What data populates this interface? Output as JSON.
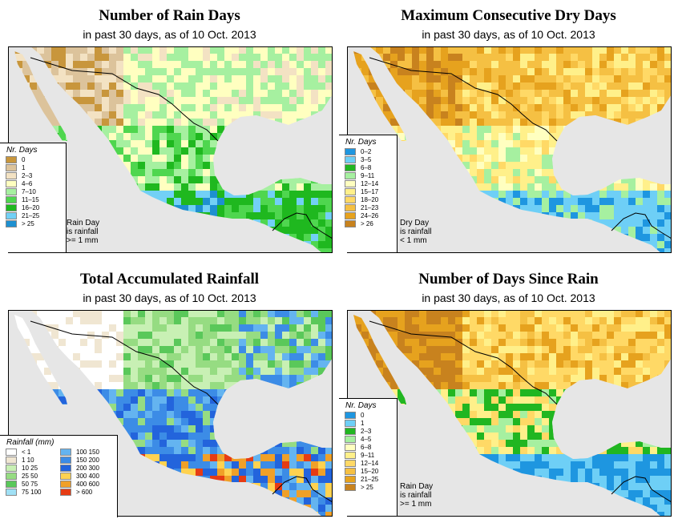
{
  "chart_data": [
    {
      "type": "heatmap",
      "title": "Number of Rain Days",
      "subtitle": "in past 30 days, as of  10 Oct. 2013",
      "legend_title": "Nr. Days",
      "legend": [
        {
          "label": "0",
          "color": "#c8963c"
        },
        {
          "label": "1",
          "color": "#dcc39b"
        },
        {
          "label": "2–3",
          "color": "#f3e2c3"
        },
        {
          "label": "4–6",
          "color": "#ffffc0"
        },
        {
          "label": "7–10",
          "color": "#a6f0a0"
        },
        {
          "label": "11–15",
          "color": "#4fd64f"
        },
        {
          "label": "16–20",
          "color": "#1fb81f"
        },
        {
          "label": "21–25",
          "color": "#72d0f5"
        },
        {
          "label": "> 25",
          "color": "#1e90d0"
        }
      ],
      "note": [
        "Rain Day",
        "is rainfall",
        ">= 1 mm"
      ]
    },
    {
      "type": "heatmap",
      "title": "Maximum Consecutive Dry Days",
      "subtitle": "in past 30 days, as of  10 Oct. 2013",
      "legend_title": "Nr. Days",
      "legend": [
        {
          "label": "0–2",
          "color": "#1e96e0"
        },
        {
          "label": "3–5",
          "color": "#6ecff6"
        },
        {
          "label": "6–8",
          "color": "#21b621"
        },
        {
          "label": "9–11",
          "color": "#a6f0a0"
        },
        {
          "label": "12–14",
          "color": "#ffffc0"
        },
        {
          "label": "15–17",
          "color": "#fff08a"
        },
        {
          "label": "18–20",
          "color": "#ffd966"
        },
        {
          "label": "21–23",
          "color": "#f5c043"
        },
        {
          "label": "24–26",
          "color": "#e6a21e"
        },
        {
          "label": "> 26",
          "color": "#c8821e"
        }
      ],
      "note": [
        "Dry Day",
        "is rainfall",
        "< 1 mm"
      ]
    },
    {
      "type": "heatmap",
      "title": "Total Accumulated Rainfall",
      "subtitle": "in past 30 days, as of  10 Oct. 2013",
      "legend_title": "Rainfall (mm)",
      "legend": [
        {
          "label": "< 1",
          "color": "#ffffff"
        },
        {
          "label": "1    10",
          "color": "#f0e6d2"
        },
        {
          "label": "10    25",
          "color": "#c8f0b4"
        },
        {
          "label": "25    50",
          "color": "#96dc82"
        },
        {
          "label": "50    75",
          "color": "#5ac85a"
        },
        {
          "label": "75   100",
          "color": "#a0e0f5"
        },
        {
          "label": "100   150",
          "color": "#64b4f0"
        },
        {
          "label": "150   200",
          "color": "#3c8ce6"
        },
        {
          "label": "200   300",
          "color": "#2364dc"
        },
        {
          "label": "300   400",
          "color": "#ffd250"
        },
        {
          "label": "400   600",
          "color": "#f0a028"
        },
        {
          "label": "> 600",
          "color": "#e63c14"
        }
      ]
    },
    {
      "type": "heatmap",
      "title": "Number of Days Since Rain",
      "subtitle": "in past 30 days, as of  10 Oct. 2013",
      "legend_title": "Nr. Days",
      "legend": [
        {
          "label": "0",
          "color": "#1e96e0"
        },
        {
          "label": "1",
          "color": "#6ecff6"
        },
        {
          "label": "2–3",
          "color": "#21b621"
        },
        {
          "label": "4–5",
          "color": "#a6f0a0"
        },
        {
          "label": "6–8",
          "color": "#ffffc0"
        },
        {
          "label": "9–11",
          "color": "#fff08a"
        },
        {
          "label": "12–14",
          "color": "#ffd966"
        },
        {
          "label": "15–20",
          "color": "#f5c043"
        },
        {
          "label": "21–25",
          "color": "#e6a21e"
        },
        {
          "label": "> 25",
          "color": "#c8821e"
        }
      ],
      "note": [
        "Rain Day",
        "is rainfall",
        ">= 1 mm"
      ]
    }
  ],
  "map_colors": {
    "ocean": "#e6e6e6",
    "border": "#000000"
  }
}
